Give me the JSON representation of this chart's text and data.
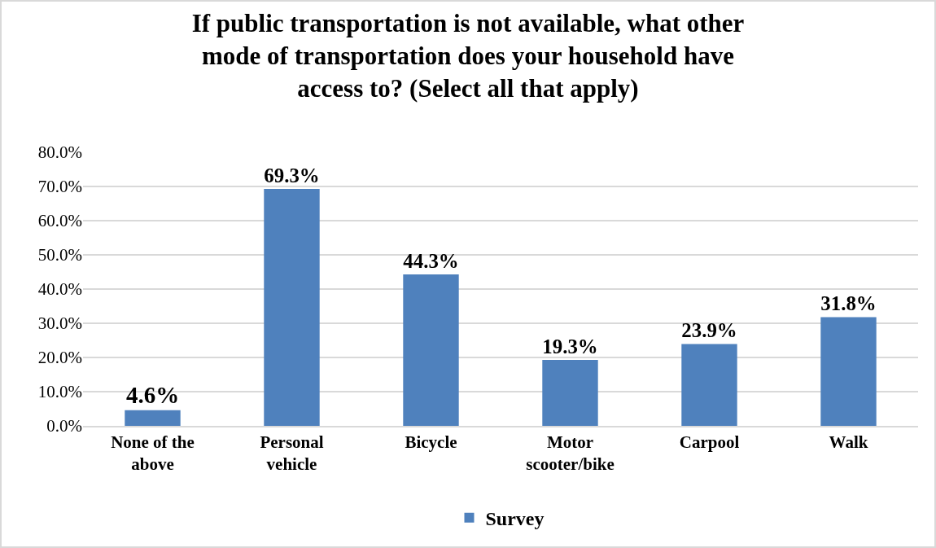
{
  "chart_data": {
    "type": "bar",
    "title": "If public transportation is not available, what other mode of transportation does your household have access to? (Select all that apply)",
    "categories": [
      "None of the above",
      "Personal vehicle",
      "Bicycle",
      "Motor scooter/bike",
      "Carpool",
      "Walk"
    ],
    "series": [
      {
        "name": "Survey",
        "color": "#4f81bd",
        "values": [
          4.6,
          69.3,
          44.3,
          19.3,
          23.9,
          31.8
        ],
        "value_labels": [
          "4.6%",
          "69.3%",
          "44.3%",
          "19.3%",
          "23.9%",
          "31.8%"
        ]
      }
    ],
    "ylim": [
      0,
      80
    ],
    "yticks": [
      {
        "value": 0,
        "label": "0.0%"
      },
      {
        "value": 10,
        "label": "10.0%"
      },
      {
        "value": 20,
        "label": "20.0%"
      },
      {
        "value": 30,
        "label": "30.0%"
      },
      {
        "value": 40,
        "label": "40.0%"
      },
      {
        "value": 50,
        "label": "50.0%"
      },
      {
        "value": 60,
        "label": "60.0%"
      },
      {
        "value": 70,
        "label": "70.0%"
      },
      {
        "value": 80,
        "label": "80.0%"
      }
    ],
    "grid": "y",
    "legend": "bottom"
  }
}
